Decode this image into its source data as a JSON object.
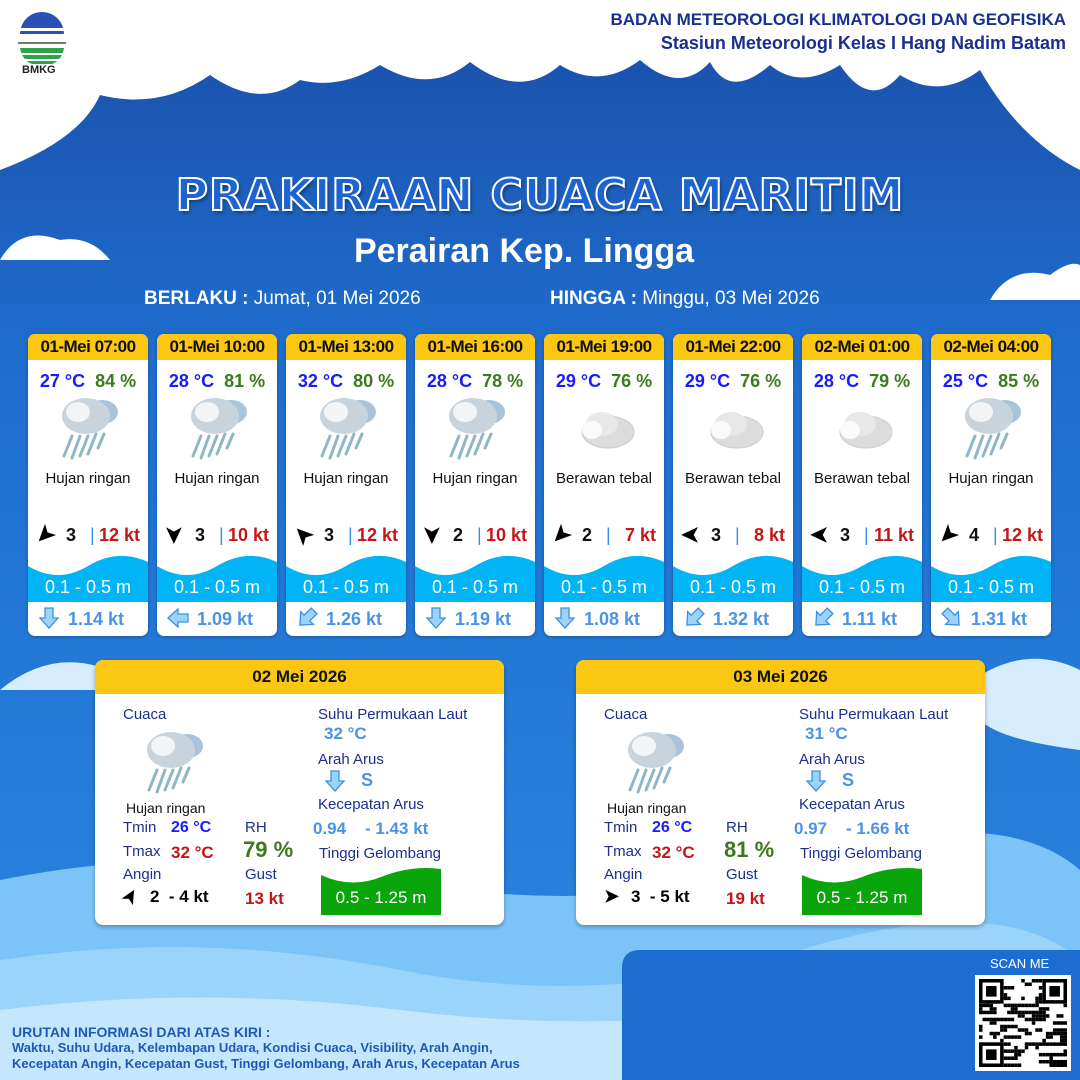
{
  "header": {
    "org": "BADAN METEOROLOGI KLIMATOLOGI DAN GEOFISIKA",
    "station": "Stasiun Meteorologi Kelas I Hang Nadim Batam",
    "logo_text": "BMKG"
  },
  "title": "PRAKIRAAN CUACA MARITIM",
  "subtitle": "Perairan Kep. Lingga",
  "validity": {
    "from_label": "BERLAKU :",
    "from": "Jumat, 01 Mei 2026",
    "to_label": "HINGGA :",
    "to": "Minggu, 03 Mei 2026"
  },
  "colors": {
    "header_yellow": "#fcc713",
    "temp": "#1a1aff",
    "rh": "#3c7a1c",
    "gust": "#c41616",
    "wave": "#00b4f5",
    "current": "#4a93e6",
    "wave_high": "#0aa50a"
  },
  "forecasts": [
    {
      "time": "01-Mei 07:00",
      "temp": "27 °C",
      "rh": "84 %",
      "icon": "light-rain-icon",
      "weather": "Hujan ringan",
      "wind_dir": "NE",
      "wind_speed": "3",
      "gust": "12 kt",
      "wave": "0.1 - 0.5 m",
      "current_dir": "S",
      "current_speed": "1.14 kt"
    },
    {
      "time": "01-Mei 10:00",
      "temp": "28 °C",
      "rh": "81 %",
      "icon": "light-rain-icon",
      "weather": "Hujan ringan",
      "wind_dir": "N",
      "wind_speed": "3",
      "gust": "10 kt",
      "wave": "0.1 - 0.5 m",
      "current_dir": "W",
      "current_speed": "1.09 kt"
    },
    {
      "time": "01-Mei 13:00",
      "temp": "32 °C",
      "rh": "80 %",
      "icon": "light-rain-icon",
      "weather": "Hujan ringan",
      "wind_dir": "SE",
      "wind_speed": "3",
      "gust": "12 kt",
      "wave": "0.1 - 0.5 m",
      "current_dir": "SW",
      "current_speed": "1.26 kt"
    },
    {
      "time": "01-Mei 16:00",
      "temp": "28 °C",
      "rh": "78 %",
      "icon": "light-rain-icon",
      "weather": "Hujan ringan",
      "wind_dir": "N",
      "wind_speed": "2",
      "gust": "10 kt",
      "wave": "0.1 - 0.5 m",
      "current_dir": "S",
      "current_speed": "1.19 kt"
    },
    {
      "time": "01-Mei 19:00",
      "temp": "29 °C",
      "rh": "76 %",
      "icon": "cloudy-icon",
      "weather": "Berawan tebal",
      "wind_dir": "NE",
      "wind_speed": "2",
      "gust": "7 kt",
      "wave": "0.1 - 0.5 m",
      "current_dir": "S",
      "current_speed": "1.08 kt"
    },
    {
      "time": "01-Mei 22:00",
      "temp": "29 °C",
      "rh": "76 %",
      "icon": "cloudy-icon",
      "weather": "Berawan tebal",
      "wind_dir": "E",
      "wind_speed": "3",
      "gust": "8 kt",
      "wave": "0.1 - 0.5 m",
      "current_dir": "SW",
      "current_speed": "1.32 kt"
    },
    {
      "time": "02-Mei 01:00",
      "temp": "28 °C",
      "rh": "79 %",
      "icon": "cloudy-icon",
      "weather": "Berawan tebal",
      "wind_dir": "E",
      "wind_speed": "3",
      "gust": "11 kt",
      "wave": "0.1 - 0.5 m",
      "current_dir": "SW",
      "current_speed": "1.11 kt"
    },
    {
      "time": "02-Mei 04:00",
      "temp": "25 °C",
      "rh": "85 %",
      "icon": "light-rain-icon",
      "weather": "Hujan ringan",
      "wind_dir": "NE",
      "wind_speed": "4",
      "gust": "12 kt",
      "wave": "0.1 - 0.5 m",
      "current_dir": "SE",
      "current_speed": "1.31 kt"
    }
  ],
  "labels": {
    "weather": "Cuaca",
    "sst": "Suhu Permukaan Laut",
    "current_dir": "Arah Arus",
    "current_speed": "Kecepatan Arus",
    "wave": "Tinggi Gelombang",
    "tmin": "Tmin",
    "tmax": "Tmax",
    "rh": "RH",
    "wind": "Angin",
    "gust": "Gust"
  },
  "daily": [
    {
      "date": "02 Mei 2026",
      "weather": "Hujan ringan",
      "tmin": "26 °C",
      "tmax": "32 °C",
      "rh": "79 %",
      "wind": "2  - 4 kt",
      "gust": "13 kt",
      "sst": "32 °C",
      "current_dir": "S",
      "current_min": "0.94",
      "current_max": "- 1.43 kt",
      "wave": "0.5 - 1.25 m"
    },
    {
      "date": "03 Mei 2026",
      "weather": "Hujan ringan",
      "tmin": "26 °C",
      "tmax": "32 °C",
      "rh": "81 %",
      "wind": "3  - 5 kt",
      "gust": "19 kt",
      "sst": "31 °C",
      "current_dir": "S",
      "current_min": "0.97",
      "current_max": "- 1.66 kt",
      "wave": "0.5 - 1.25 m"
    }
  ],
  "footer": {
    "heading": "URUTAN INFORMASI DARI ATAS KIRI :",
    "line1": "Waktu, Suhu Udara, Kelembapan Udara, Kondisi Cuaca, Visibility, Arah Angin,",
    "line2": "Kecepatan Angin, Kecepatan Gust, Tinggi Gelombang, Arah Arus, Kecepatan Arus",
    "scan": "SCAN ME"
  }
}
